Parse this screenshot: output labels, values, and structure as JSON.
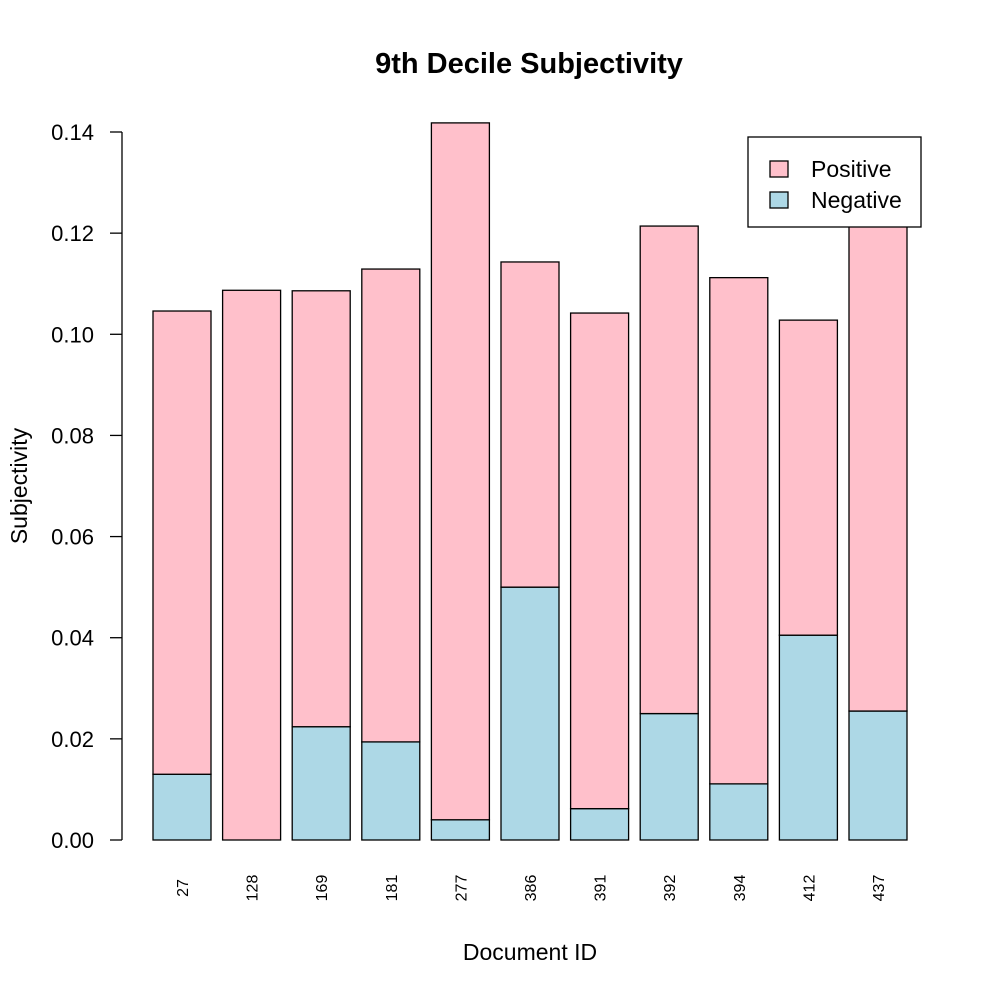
{
  "chart_data": {
    "type": "bar",
    "stacked": true,
    "title": "9th Decile Subjectivity",
    "xlabel": "Document ID",
    "ylabel": "Subjectivity",
    "ylim": [
      0,
      0.14
    ],
    "yticks": [
      "0.00",
      "0.02",
      "0.04",
      "0.06",
      "0.08",
      "0.10",
      "0.12",
      "0.14"
    ],
    "categories": [
      "27",
      "128",
      "169",
      "181",
      "277",
      "386",
      "391",
      "392",
      "394",
      "412",
      "437"
    ],
    "series": [
      {
        "name": "Negative",
        "color": "#ADD8E6",
        "values": [
          0.013,
          0.0,
          0.0224,
          0.0194,
          0.004,
          0.05,
          0.0062,
          0.025,
          0.0111,
          0.0405,
          0.0255
        ]
      },
      {
        "name": "Positive",
        "color": "#FFC0CB",
        "values": [
          0.0916,
          0.1087,
          0.0862,
          0.0935,
          0.1378,
          0.0643,
          0.098,
          0.0964,
          0.1001,
          0.0623,
          0.0986
        ]
      }
    ],
    "legend": {
      "position": "top-right",
      "order": [
        "Positive",
        "Negative"
      ]
    },
    "grid": false
  }
}
